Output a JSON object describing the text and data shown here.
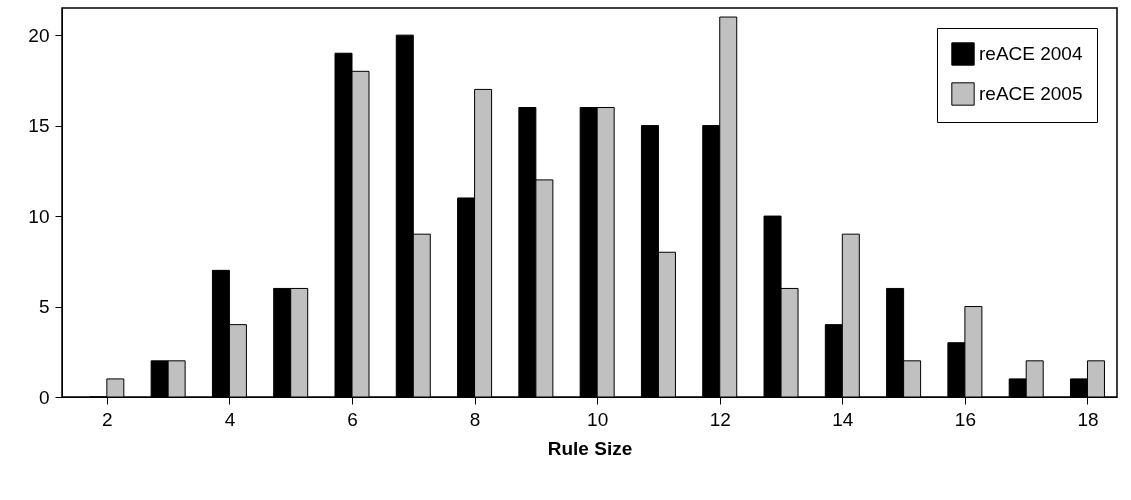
{
  "chart_data": {
    "type": "bar",
    "xlabel": "Rule Size",
    "x": [
      2,
      3,
      4,
      5,
      6,
      7,
      8,
      9,
      10,
      11,
      12,
      13,
      14,
      15,
      16,
      17,
      18
    ],
    "series": [
      {
        "name": "reACE 2004",
        "color": "#000000",
        "values": [
          0,
          2,
          7,
          6,
          19,
          20,
          11,
          16,
          16,
          15,
          15,
          10,
          4,
          6,
          3,
          1,
          1
        ]
      },
      {
        "name": "reACE 2005",
        "color": "#c0c0c0",
        "values": [
          1,
          2,
          4,
          6,
          18,
          9,
          17,
          12,
          16,
          8,
          21,
          6,
          9,
          2,
          5,
          2,
          2
        ]
      }
    ],
    "xlim": [
      1.35,
      18.4
    ],
    "xticks": [
      2,
      4,
      6,
      8,
      10,
      12,
      14,
      16,
      18
    ],
    "ylim": [
      0,
      21.5
    ],
    "yticks": [
      0,
      5,
      10,
      15,
      20
    ],
    "legend": "top right"
  }
}
